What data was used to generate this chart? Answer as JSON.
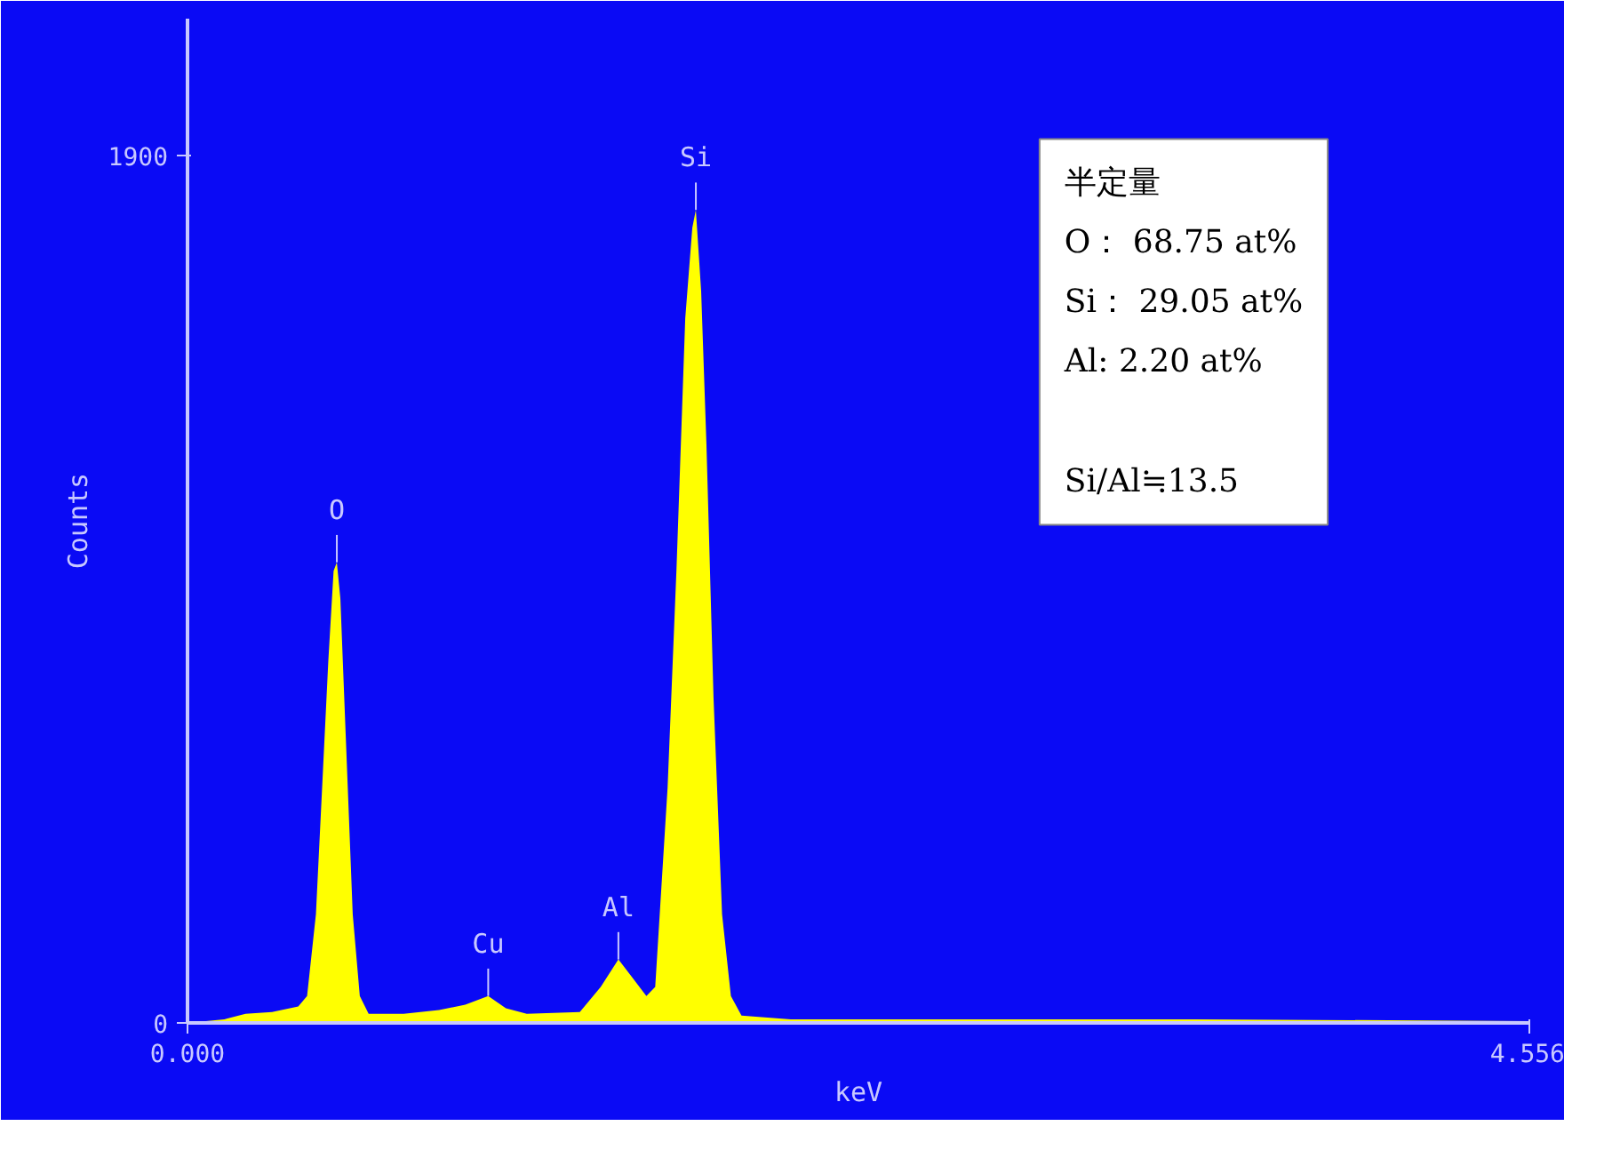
{
  "chart_data": {
    "type": "area",
    "xlabel": "keV",
    "ylabel": "Counts",
    "x": [
      0,
      0.125,
      0.197,
      0.287,
      0.376,
      0.406,
      0.436,
      0.46,
      0.478,
      0.496,
      0.507,
      0.519,
      0.537,
      0.561,
      0.585,
      0.615,
      0.734,
      0.854,
      0.943,
      1.021,
      1.081,
      1.152,
      1.332,
      1.403,
      1.463,
      1.511,
      1.558,
      1.588,
      1.63,
      1.66,
      1.69,
      1.714,
      1.726,
      1.744,
      1.762,
      1.786,
      1.815,
      1.845,
      1.881,
      2.048,
      2.526,
      3.421,
      4.556
    ],
    "series": [
      {
        "color": "#ffff00",
        "values": [
          0,
          8,
          20,
          24,
          36,
          59,
          238,
          554,
          792,
          990,
          1009,
          930,
          633,
          238,
          59,
          20,
          20,
          28,
          40,
          59,
          32,
          20,
          24,
          79,
          139,
          99,
          59,
          79,
          515,
          990,
          1544,
          1742,
          1781,
          1603,
          1267,
          713,
          238,
          59,
          16,
          8,
          8,
          8,
          4
        ]
      }
    ],
    "xlim": [
      0,
      4.556
    ],
    "ylim": [
      0,
      2200
    ],
    "xticks": [
      {
        "value": 0,
        "label": "0.000"
      },
      4.556
    ],
    "yticks": [
      0,
      1900
    ],
    "grid": false,
    "annotations": [
      {
        "text": "O",
        "x": 0.507,
        "y": 1009
      },
      {
        "text": "Cu",
        "x": 1.021,
        "y": 59
      },
      {
        "text": "Al",
        "x": 1.463,
        "y": 139
      },
      {
        "text": "Si",
        "x": 1.726,
        "y": 1781
      },
      "半定量",
      "O： 68.75 at%",
      "Si： 29.05 at%",
      "Al: 2.20 at%",
      "Si/Al≒13.5"
    ]
  }
}
